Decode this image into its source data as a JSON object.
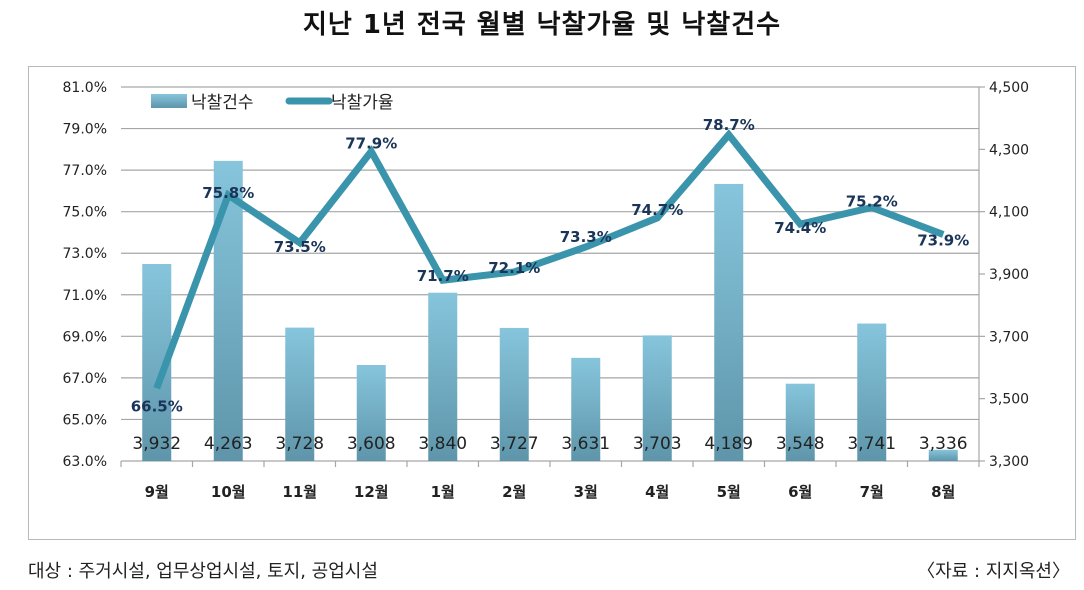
{
  "title": "지난 1년 전국 월별 낙찰가율 및 낙찰건수",
  "footer": {
    "scope": "대상 : 주거시설, 업무상업시설, 토지, 공업시설",
    "source": "〈자료 : 지지옥션〉"
  },
  "colors": {
    "bar_top": "#86c5dc",
    "bar_bottom": "#5e95aa",
    "line": "#3a94ac",
    "rate_label": "#1a3558",
    "grid": "#a6a6a6"
  },
  "chart_data": {
    "type": "bar+line",
    "title": "지난 1년 전국 월별 낙찰가율 및 낙찰건수",
    "categories": [
      "9월",
      "10월",
      "11월",
      "12월",
      "1월",
      "2월",
      "3월",
      "4월",
      "5월",
      "6월",
      "7월",
      "8월"
    ],
    "series": [
      {
        "name": "낙찰건수",
        "type": "bar",
        "axis": "right",
        "values": [
          3932,
          4263,
          3728,
          3608,
          3840,
          3727,
          3631,
          3703,
          4189,
          3548,
          3741,
          3336
        ],
        "labels": [
          "3,932",
          "4,263",
          "3,728",
          "3,608",
          "3,840",
          "3,727",
          "3,631",
          "3,703",
          "4,189",
          "3,548",
          "3,741",
          "3,336"
        ]
      },
      {
        "name": "낙찰가율",
        "type": "line",
        "axis": "left",
        "values": [
          66.5,
          75.8,
          73.5,
          77.9,
          71.7,
          72.1,
          73.3,
          74.7,
          78.7,
          74.4,
          75.2,
          73.9
        ],
        "labels": [
          "66.5%",
          "75.8%",
          "73.5%",
          "77.9%",
          "71.7%",
          "72.1%",
          "73.3%",
          "74.7%",
          "78.7%",
          "74.4%",
          "75.2%",
          "73.9%"
        ]
      }
    ],
    "y_left": {
      "range": [
        63.0,
        81.0
      ],
      "ticks": [
        63.0,
        65.0,
        67.0,
        69.0,
        71.0,
        73.0,
        75.0,
        77.0,
        79.0,
        81.0
      ],
      "tick_labels": [
        "63.0%",
        "65.0%",
        "67.0%",
        "69.0%",
        "71.0%",
        "73.0%",
        "75.0%",
        "77.0%",
        "79.0%",
        "81.0%"
      ]
    },
    "y_right": {
      "range": [
        3300,
        4500
      ],
      "ticks": [
        3300,
        3500,
        3700,
        3900,
        4100,
        4300,
        4500
      ],
      "tick_labels": [
        "3,300",
        "3,500",
        "3,700",
        "3,900",
        "4,100",
        "4,300",
        "4,500"
      ]
    },
    "xlabel": "",
    "ylabel": "",
    "grid": true,
    "legend": {
      "position": "top-left",
      "entries": [
        "낙찰건수",
        "낙찰가율"
      ]
    }
  }
}
